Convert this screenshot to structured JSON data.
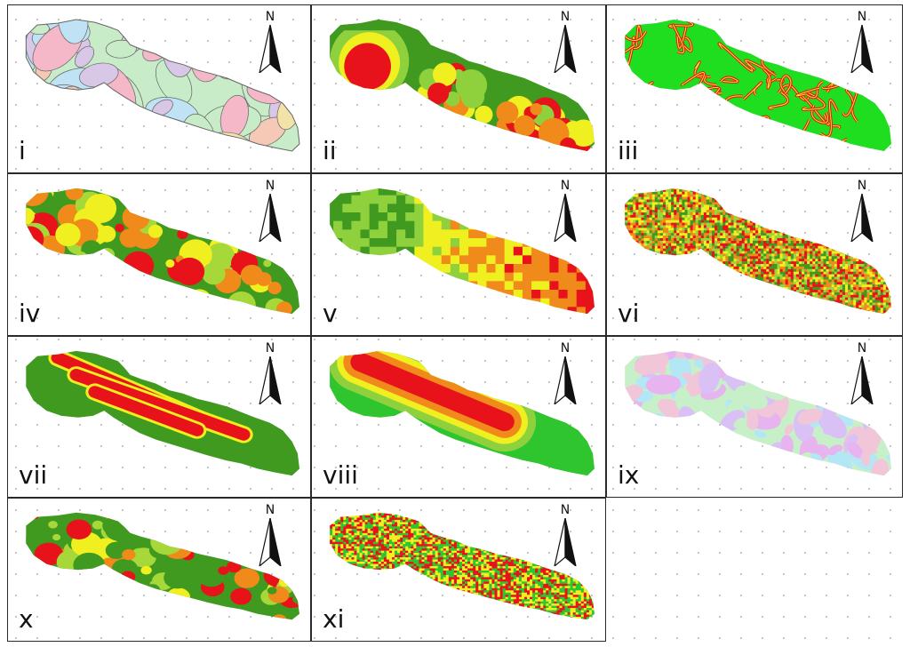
{
  "figure": {
    "panels": [
      {
        "label": "i",
        "theme": "geology",
        "palette": [
          "#bfe3f5",
          "#f6c9b7",
          "#d9c7e8",
          "#c8ecc8",
          "#f3e3a8",
          "#f4b8c8"
        ],
        "outline": "#666666"
      },
      {
        "label": "ii",
        "theme": "gradient",
        "palette": [
          "#3f9a1f",
          "#8fd13d",
          "#f0f020",
          "#f08a1a",
          "#e8121a"
        ]
      },
      {
        "label": "iii",
        "theme": "network",
        "palette": [
          "#1fdd1f",
          "#f0f020",
          "#e8121a"
        ]
      },
      {
        "label": "iv",
        "theme": "blobs",
        "palette": [
          "#3f9a1f",
          "#a6d83a",
          "#f0f020",
          "#f08a1a",
          "#e8121a"
        ]
      },
      {
        "label": "v",
        "theme": "coarse",
        "palette": [
          "#3f9a1f",
          "#8fd13d",
          "#f0f020",
          "#f08a1a",
          "#e8121a"
        ]
      },
      {
        "label": "vi",
        "theme": "noise",
        "palette": [
          "#3f9a1f",
          "#9bd43b",
          "#f0f020",
          "#f08a1a",
          "#e8121a"
        ]
      },
      {
        "label": "vii",
        "theme": "bands",
        "palette": [
          "#3f9a1f",
          "#f0f020",
          "#e8121a"
        ]
      },
      {
        "label": "viii",
        "theme": "buffers",
        "palette": [
          "#2fc52f",
          "#8fd13d",
          "#f0f020",
          "#f08a1a",
          "#e8121a"
        ]
      },
      {
        "label": "ix",
        "theme": "pastel",
        "palette": [
          "#e7b4f0",
          "#b4e7f5",
          "#f0c6d8",
          "#c8f0c8",
          "#d9c1f5"
        ]
      },
      {
        "label": "x",
        "theme": "blobs",
        "palette": [
          "#3f9a1f",
          "#a6d83a",
          "#f0f020",
          "#f08a1a",
          "#e8121a"
        ]
      },
      {
        "label": "xi",
        "theme": "noise",
        "palette": [
          "#2fc52f",
          "#f0f020",
          "#e8121a"
        ]
      }
    ],
    "north_label": "N"
  }
}
